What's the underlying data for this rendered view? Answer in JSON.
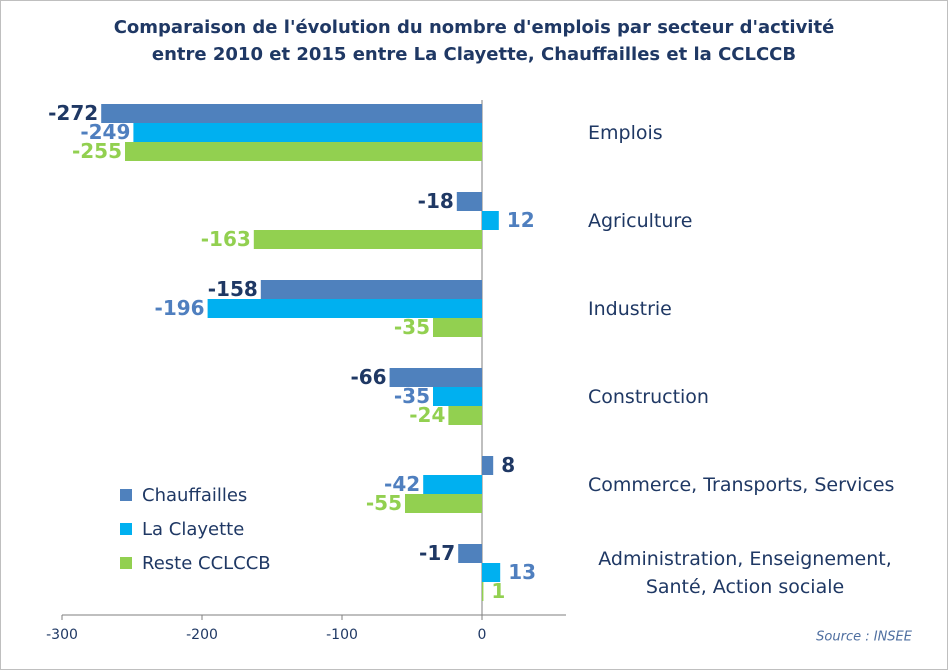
{
  "chart_data": {
    "type": "hbar",
    "title": "Comparaison de l'évolution du nombre d'emplois par secteur d'activité entre 2010 et 2015 entre La Clayette, Chauffailles et la CCLCCB",
    "categories": [
      "Emplois",
      "Agriculture",
      "Industrie",
      "Construction",
      "Commerce, Transports, Services",
      "Administration, Enseignement, Santé, Action sociale"
    ],
    "series": [
      {
        "name": "Chauffailles",
        "color": "#4f81bd",
        "label_color": "#1f3864",
        "values": [
          -272,
          -18,
          -158,
          -66,
          8,
          -17
        ]
      },
      {
        "name": "La Clayette",
        "color": "#00b0f0",
        "label_color": "#4f7fbf",
        "values": [
          -249,
          12,
          -196,
          -35,
          -42,
          13
        ]
      },
      {
        "name": "Reste CCLCCB",
        "color": "#92d050",
        "label_color": "#92d050",
        "values": [
          -255,
          -163,
          -35,
          -24,
          -55,
          1
        ]
      }
    ],
    "xlim": [
      -300,
      60
    ],
    "xticks": [
      -300,
      -200,
      -100,
      0
    ],
    "legend": "lower left",
    "source": "Source : INSEE"
  }
}
